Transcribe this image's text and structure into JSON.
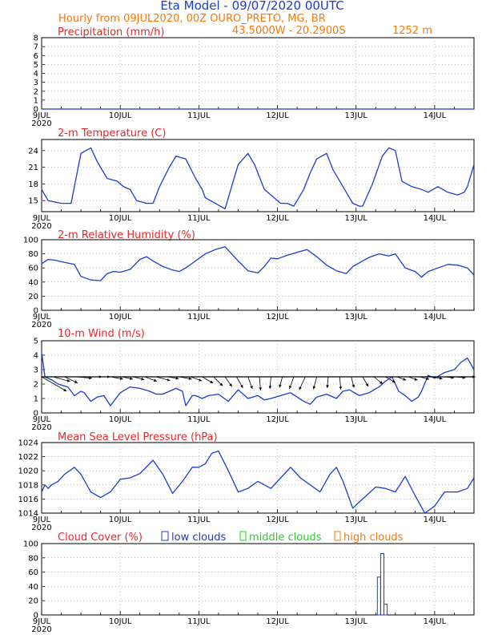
{
  "header": {
    "title": "Eta Model - 09/07/2020 00UTC",
    "subtitle": "Hourly from 09JUL2020, 00Z   OURO_PRETO, MG, BR",
    "coords": "43.5000W - 20.2900S",
    "elevation": "1252  m"
  },
  "colors": {
    "line": "#1c3ccc",
    "title": "#e8272a",
    "header": "#1c3ccc",
    "subheader": "#f07a10",
    "low_clouds": "#1c3ccc",
    "middle_clouds": "#2ad02a",
    "high_clouds": "#f07a10"
  },
  "x_axis": {
    "start_label": "9JUL",
    "year": "2020",
    "day_labels": [
      "10JUL",
      "11JUL",
      "12JUL",
      "13JUL",
      "14JUL"
    ],
    "hours_total": 132
  },
  "chart_data": [
    {
      "type": "line",
      "title": "Precipitation (mm/h)",
      "ylim": [
        0,
        8
      ],
      "yticks": [
        "0",
        "1",
        "2",
        "3",
        "4",
        "5",
        "6",
        "7",
        "8"
      ],
      "series": [
        {
          "name": "Precipitation",
          "x": [
            0,
            132
          ],
          "values": [
            0,
            0
          ]
        }
      ]
    },
    {
      "type": "line",
      "title": "2-m Temperature (C)",
      "ylim": [
        13,
        26
      ],
      "yticks": [
        "15",
        "18",
        "21",
        "24"
      ],
      "series": [
        {
          "name": "Temperature",
          "x": [
            0,
            2,
            6,
            9,
            12,
            15,
            17,
            20,
            23,
            25,
            27,
            29,
            32,
            34,
            36,
            39,
            41,
            44,
            47,
            49,
            50,
            53,
            56,
            58,
            60,
            63,
            65,
            68,
            71,
            73,
            75,
            77,
            80,
            82,
            84,
            87,
            89,
            92,
            94,
            95,
            97,
            98,
            101,
            104,
            106,
            108,
            110,
            113,
            116,
            118,
            121,
            124,
            127,
            129,
            130,
            132
          ],
          "values": [
            17,
            15,
            14.5,
            14.5,
            23.5,
            24.5,
            22,
            19,
            18.5,
            17.5,
            17,
            15,
            14.5,
            14.5,
            17.5,
            21,
            23,
            22.5,
            19,
            17,
            15.5,
            14.5,
            13.5,
            17.5,
            21.5,
            23.5,
            21.5,
            17,
            15.5,
            14.5,
            14.5,
            14,
            17,
            20,
            22.5,
            23.5,
            20.5,
            17.5,
            15.5,
            14.5,
            14,
            14,
            18,
            23,
            24.5,
            24,
            18.5,
            17.5,
            17,
            16.5,
            17.5,
            16.5,
            16,
            16.5,
            17.5,
            21.5
          ]
        }
      ]
    },
    {
      "type": "line",
      "title": "2-m Relative Humidity (%)",
      "ylim": [
        0,
        100
      ],
      "yticks": [
        "0",
        "20",
        "40",
        "60",
        "80",
        "100"
      ],
      "series": [
        {
          "name": "Relative Humidity",
          "x": [
            0,
            2,
            4,
            7,
            10,
            12,
            15,
            18,
            20,
            22,
            24,
            27,
            30,
            32,
            34,
            37,
            40,
            42,
            44,
            47,
            50,
            53,
            56,
            60,
            63,
            66,
            68,
            70,
            72,
            75,
            78,
            81,
            84,
            87,
            90,
            93,
            95,
            98,
            100,
            103,
            106,
            108,
            111,
            114,
            116,
            118,
            121,
            124,
            127,
            130,
            132
          ],
          "values": [
            66,
            72,
            71,
            68,
            65,
            48,
            43,
            42,
            52,
            55,
            54,
            58,
            72,
            76,
            70,
            62,
            57,
            55,
            60,
            70,
            80,
            86,
            90,
            70,
            56,
            53,
            62,
            74,
            73,
            78,
            82,
            86,
            76,
            64,
            56,
            52,
            62,
            70,
            75,
            80,
            77,
            80,
            60,
            55,
            47,
            55,
            60,
            65,
            64,
            60,
            50
          ]
        }
      ]
    },
    {
      "type": "line",
      "title": "10-m Wind (m/s)",
      "ylim": [
        0,
        5
      ],
      "yticks": [
        "0",
        "1",
        "2",
        "3",
        "4",
        "5"
      ],
      "series": [
        {
          "name": "Wind speed",
          "x": [
            0,
            1,
            3,
            5,
            8,
            10,
            12,
            13,
            15,
            17,
            19,
            21,
            24,
            27,
            30,
            33,
            35,
            37,
            39,
            41,
            43,
            44,
            46,
            47,
            49,
            51,
            54,
            57,
            60,
            63,
            66,
            68,
            70,
            73,
            76,
            80,
            82,
            84,
            87,
            90,
            92,
            94,
            97,
            100,
            103,
            105,
            107,
            109,
            111,
            113,
            115,
            116,
            118,
            120,
            123,
            126,
            128,
            130,
            132
          ],
          "values": [
            4.2,
            2.5,
            2.3,
            2,
            1.8,
            1.2,
            1.5,
            1.4,
            0.8,
            1.1,
            1.2,
            0.5,
            1.4,
            1.8,
            1.7,
            1.5,
            1.3,
            1.3,
            1.5,
            1.7,
            1.5,
            0.5,
            1.2,
            1.2,
            1,
            1.2,
            1.3,
            0.8,
            1.6,
            1,
            1.2,
            0.9,
            1,
            1.2,
            1.4,
            0.8,
            0.6,
            1.1,
            1.3,
            1,
            1.5,
            1.6,
            1.2,
            1.4,
            1.8,
            2.2,
            2.5,
            1.5,
            1.2,
            0.8,
            1.1,
            1.5,
            2.6,
            2.4,
            2.8,
            3,
            3.5,
            3.8,
            3
          ]
        }
      ],
      "wind_barbs": {
        "baseline": 2.5,
        "angles_deg": [
          30,
          15,
          25,
          5,
          0,
          0,
          10,
          12,
          15,
          20,
          15,
          10,
          10,
          20,
          30,
          45,
          55,
          60,
          70,
          85,
          95,
          105,
          110,
          115,
          105,
          95,
          85,
          75,
          60,
          40,
          30,
          20,
          20,
          15,
          10,
          5,
          5,
          0
        ],
        "lengths": [
          36,
          22,
          18,
          20,
          18,
          14,
          16,
          14,
          14,
          16,
          18,
          14,
          16,
          15,
          16,
          16,
          15,
          16,
          16,
          17,
          15,
          14,
          16,
          18,
          16,
          14,
          16,
          14,
          14,
          14,
          14,
          12,
          12,
          12,
          14,
          14,
          14,
          12
        ]
      }
    },
    {
      "type": "line",
      "title": "Mean Sea Level Pressure (hPa)",
      "ylim": [
        1014,
        1024
      ],
      "yticks": [
        "1014",
        "1016",
        "1018",
        "1020",
        "1022",
        "1024"
      ],
      "series": [
        {
          "name": "MSLP",
          "x": [
            0,
            1,
            2,
            3,
            5,
            7,
            10,
            12,
            15,
            18,
            21,
            24,
            27,
            30,
            34,
            37,
            40,
            43,
            46,
            48,
            50,
            52,
            54,
            57,
            60,
            63,
            66,
            70,
            73,
            76,
            79,
            82,
            85,
            88,
            90,
            92,
            95,
            98,
            102,
            105,
            108,
            111,
            114,
            117,
            120,
            123,
            127,
            130,
            132
          ],
          "values": [
            1017,
            1018,
            1017.5,
            1018,
            1018.5,
            1019.5,
            1020.5,
            1019.5,
            1017,
            1016.2,
            1017,
            1018.8,
            1019,
            1019.6,
            1021.5,
            1019.5,
            1016.8,
            1018.5,
            1020.5,
            1020.5,
            1021,
            1022.5,
            1022.8,
            1020,
            1017,
            1017.5,
            1018.5,
            1017.5,
            1019,
            1020.5,
            1019,
            1018,
            1017,
            1019.5,
            1020.5,
            1018.5,
            1014.7,
            1016,
            1017.7,
            1017.5,
            1017,
            1019.2,
            1016.5,
            1014,
            1015,
            1017,
            1017,
            1017.5,
            1019
          ]
        }
      ]
    },
    {
      "type": "bar",
      "title": "Cloud Cover (%)",
      "ylim": [
        0,
        100
      ],
      "yticks": [
        "0",
        "20",
        "40",
        "60",
        "80",
        "100"
      ],
      "legend": {
        "low": "low clouds",
        "middle": "middle clouds",
        "high": "high clouds"
      },
      "series": [
        {
          "name": "low clouds",
          "x": [
            103,
            104,
            105
          ],
          "values": [
            53,
            86,
            15
          ]
        }
      ]
    }
  ]
}
